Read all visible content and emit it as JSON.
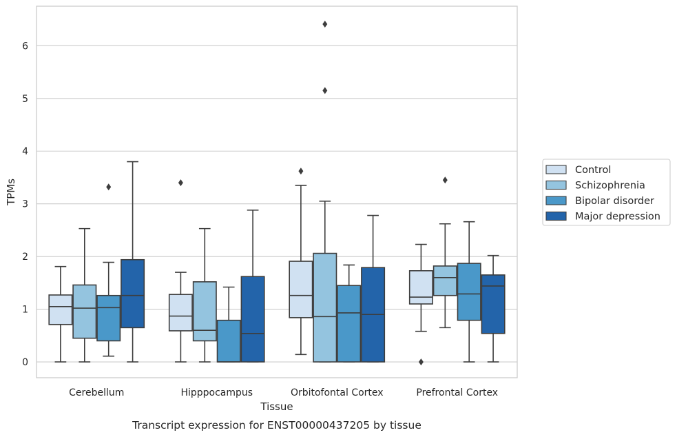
{
  "caption": "Transcript expression for ENST00000437205 by tissue",
  "chart_data": {
    "type": "box",
    "xlabel": "Tissue",
    "ylabel": "TPMs",
    "ylim": [
      -0.3,
      6.75
    ],
    "yticks": [
      0,
      1,
      2,
      3,
      4,
      5,
      6
    ],
    "grid": "horizontal",
    "legend_position": "right",
    "categories": [
      "Cerebellum",
      "Hipppocampus",
      "Orbitofontal Cortex",
      "Prefrontal Cortex"
    ],
    "series": [
      {
        "name": "Control",
        "color": "#d0e1f2",
        "boxes": [
          {
            "whislo": 0.0,
            "q1": 0.71,
            "med": 1.05,
            "q3": 1.27,
            "whishi": 1.81,
            "fliers": []
          },
          {
            "whislo": 0.0,
            "q1": 0.59,
            "med": 0.87,
            "q3": 1.28,
            "whishi": 1.7,
            "fliers": [
              3.4
            ]
          },
          {
            "whislo": 0.14,
            "q1": 0.84,
            "med": 1.26,
            "q3": 1.91,
            "whishi": 3.35,
            "fliers": [
              3.62
            ]
          },
          {
            "whislo": 0.58,
            "q1": 1.1,
            "med": 1.23,
            "q3": 1.73,
            "whishi": 2.23,
            "fliers": [
              0.0
            ]
          }
        ]
      },
      {
        "name": "Schizophrenia",
        "color": "#94c4df",
        "boxes": [
          {
            "whislo": 0.0,
            "q1": 0.45,
            "med": 1.02,
            "q3": 1.46,
            "whishi": 2.53,
            "fliers": []
          },
          {
            "whislo": 0.0,
            "q1": 0.4,
            "med": 0.6,
            "q3": 1.52,
            "whishi": 2.53,
            "fliers": []
          },
          {
            "whislo": 0.0,
            "q1": 0.0,
            "med": 0.86,
            "q3": 2.06,
            "whishi": 3.05,
            "fliers": [
              6.41,
              5.15
            ]
          },
          {
            "whislo": 0.65,
            "q1": 1.26,
            "med": 1.6,
            "q3": 1.82,
            "whishi": 2.62,
            "fliers": [
              3.45
            ]
          }
        ]
      },
      {
        "name": "Bipolar disorder",
        "color": "#4a98c9",
        "boxes": [
          {
            "whislo": 0.11,
            "q1": 0.4,
            "med": 1.03,
            "q3": 1.26,
            "whishi": 1.89,
            "fliers": [
              3.32
            ]
          },
          {
            "whislo": 0.0,
            "q1": 0.0,
            "med": 0.0,
            "q3": 0.79,
            "whishi": 1.42,
            "fliers": []
          },
          {
            "whislo": 0.0,
            "q1": 0.0,
            "med": 0.93,
            "q3": 1.45,
            "whishi": 1.84,
            "fliers": []
          },
          {
            "whislo": 0.0,
            "q1": 0.79,
            "med": 1.29,
            "q3": 1.87,
            "whishi": 2.66,
            "fliers": []
          }
        ]
      },
      {
        "name": "Major depression",
        "color": "#2364aa",
        "boxes": [
          {
            "whislo": 0.0,
            "q1": 0.65,
            "med": 1.26,
            "q3": 1.94,
            "whishi": 3.8,
            "fliers": []
          },
          {
            "whislo": 0.0,
            "q1": 0.0,
            "med": 0.54,
            "q3": 1.62,
            "whishi": 2.88,
            "fliers": []
          },
          {
            "whislo": 0.0,
            "q1": 0.0,
            "med": 0.9,
            "q3": 1.79,
            "whishi": 2.78,
            "fliers": []
          },
          {
            "whislo": 0.0,
            "q1": 0.54,
            "med": 1.44,
            "q3": 1.65,
            "whishi": 2.02,
            "fliers": []
          }
        ]
      }
    ]
  }
}
